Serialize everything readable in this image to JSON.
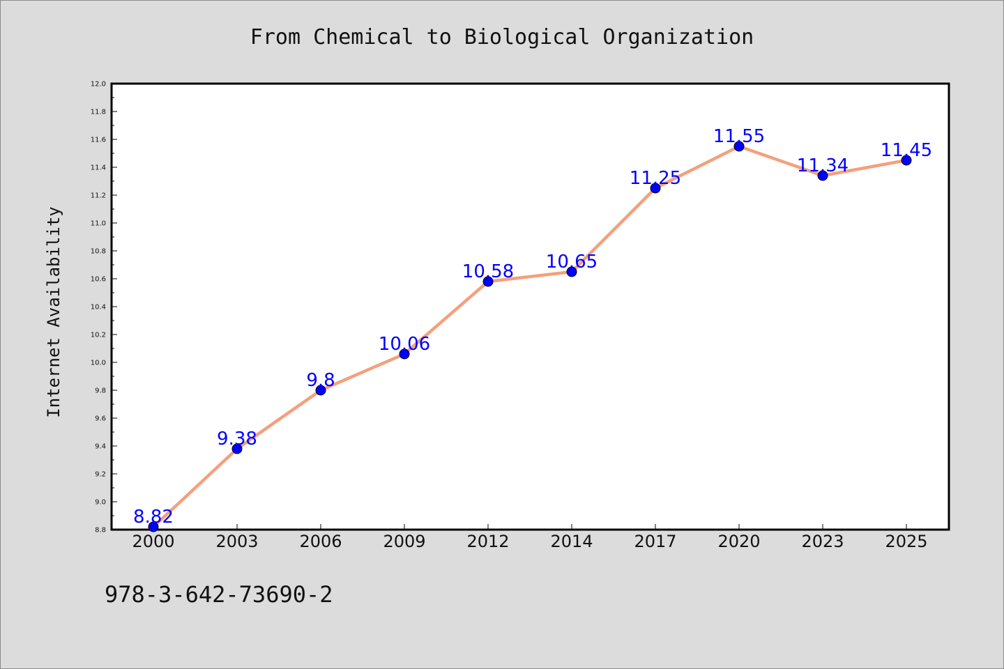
{
  "chart_data": {
    "type": "line",
    "title": "From Chemical to Biological Organization",
    "xlabel": "",
    "ylabel": "Internet Availability",
    "categories": [
      "2000",
      "2003",
      "2006",
      "2009",
      "2012",
      "2014",
      "2017",
      "2020",
      "2023",
      "2025"
    ],
    "series": [
      {
        "values": [
          8.82,
          9.38,
          9.8,
          10.06,
          10.58,
          10.65,
          11.25,
          11.55,
          11.34,
          11.45
        ],
        "labels": [
          "8.82",
          "9.38",
          "9.8",
          "10.06",
          "10.58",
          "10.65",
          "11.25",
          "11.55",
          "11.34",
          "11.45"
        ]
      }
    ],
    "ylim": [
      8.8,
      12.0
    ],
    "yticks": [
      "8.8",
      "9.0",
      "9.2",
      "9.4",
      "9.6",
      "9.8",
      "10.0",
      "10.2",
      "10.4",
      "10.6",
      "10.8",
      "11.0",
      "11.2",
      "11.4",
      "11.6",
      "11.8",
      "12.0"
    ],
    "grid": false,
    "legend": "none",
    "colors": {
      "line": "#f4a07c",
      "marker": "#0000ff",
      "label": "#0000ff",
      "plot_bg": "#ffffff",
      "page_bg": "#dcdcdc"
    }
  },
  "footer": {
    "code": "978-3-642-73690-2"
  }
}
